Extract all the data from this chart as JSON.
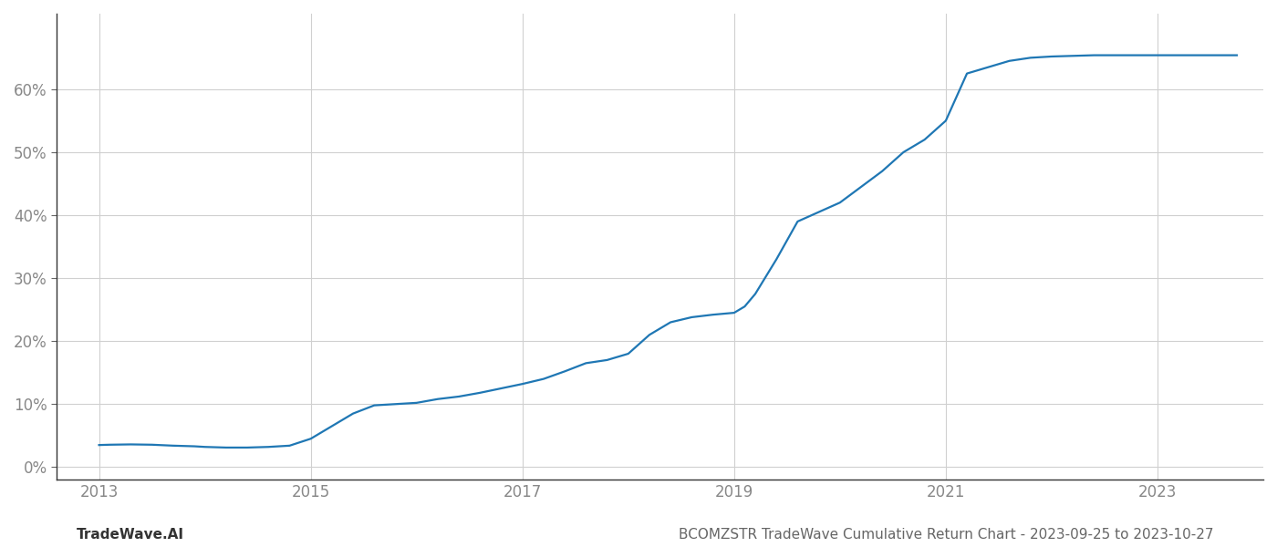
{
  "x_years": [
    2013.0,
    2013.1,
    2013.3,
    2013.5,
    2013.7,
    2013.9,
    2014.0,
    2014.2,
    2014.4,
    2014.6,
    2014.8,
    2015.0,
    2015.2,
    2015.4,
    2015.6,
    2015.8,
    2016.0,
    2016.2,
    2016.4,
    2016.6,
    2016.8,
    2017.0,
    2017.2,
    2017.4,
    2017.6,
    2017.8,
    2018.0,
    2018.1,
    2018.2,
    2018.3,
    2018.4,
    2018.6,
    2018.8,
    2019.0,
    2019.1,
    2019.2,
    2019.4,
    2019.6,
    2019.8,
    2020.0,
    2020.2,
    2020.4,
    2020.6,
    2020.8,
    2021.0,
    2021.2,
    2021.4,
    2021.6,
    2021.8,
    2022.0,
    2022.2,
    2022.4,
    2022.6,
    2022.8,
    2023.0,
    2023.2,
    2023.5,
    2023.75
  ],
  "y_values": [
    3.5,
    3.55,
    3.6,
    3.55,
    3.4,
    3.3,
    3.2,
    3.1,
    3.1,
    3.2,
    3.4,
    4.5,
    6.5,
    8.5,
    9.8,
    10.0,
    10.2,
    10.8,
    11.2,
    11.8,
    12.5,
    13.2,
    14.0,
    15.2,
    16.5,
    17.0,
    18.0,
    19.5,
    21.0,
    22.0,
    23.0,
    23.8,
    24.2,
    24.5,
    25.5,
    27.5,
    33.0,
    39.0,
    40.5,
    42.0,
    44.5,
    47.0,
    50.0,
    52.0,
    55.0,
    62.5,
    63.5,
    64.5,
    65.0,
    65.2,
    65.3,
    65.4,
    65.4,
    65.4,
    65.4,
    65.4,
    65.4,
    65.4
  ],
  "line_color": "#1f77b4",
  "line_width": 1.6,
  "xticks": [
    2013,
    2015,
    2017,
    2019,
    2021,
    2023
  ],
  "yticks": [
    0,
    10,
    20,
    30,
    40,
    50,
    60
  ],
  "ylim": [
    -2,
    72
  ],
  "xlim": [
    2012.6,
    2024.0
  ],
  "grid_color": "#d0d0d0",
  "bg_color": "#ffffff",
  "footer_left": "TradeWave.AI",
  "footer_right": "BCOMZSTR TradeWave Cumulative Return Chart - 2023-09-25 to 2023-10-27",
  "footer_fontsize": 11,
  "tick_fontsize": 12,
  "tick_color": "#888888"
}
